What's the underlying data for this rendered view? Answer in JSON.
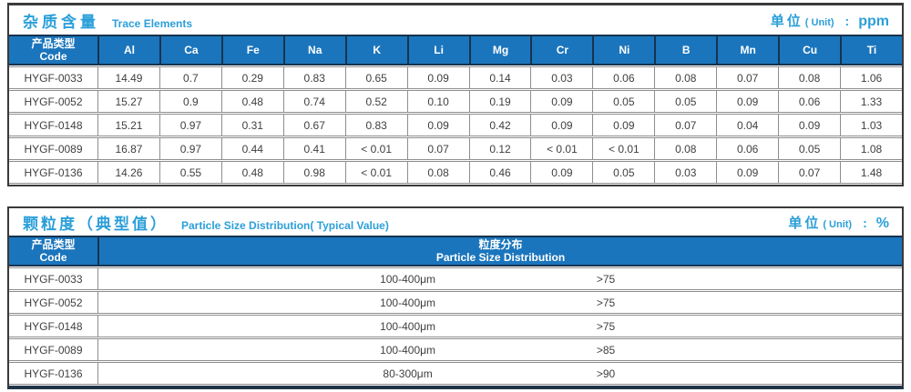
{
  "colors": {
    "header_bg": "#1b75bc",
    "divider_navy": "#16334f",
    "title_blue": "#2b9fd9",
    "cell_border_gray": "#8e8e8e"
  },
  "trace_table": {
    "title_zh": "杂质含量",
    "title_en": "Trace Elements",
    "unit_label": "单位",
    "unit_paren": "( Unit)",
    "unit_colon": ":",
    "unit_value": "ppm",
    "code_header_zh": "产品类型",
    "code_header_en": "Code",
    "columns": [
      "Al",
      "Ca",
      "Fe",
      "Na",
      "K",
      "Li",
      "Mg",
      "Cr",
      "Ni",
      "B",
      "Mn",
      "Cu",
      "Ti"
    ],
    "rows": [
      {
        "code": "HYGF-0033",
        "values": [
          "14.49",
          "0.7",
          "0.29",
          "0.83",
          "0.65",
          "0.09",
          "0.14",
          "0.03",
          "0.06",
          "0.08",
          "0.07",
          "0.08",
          "1.06"
        ]
      },
      {
        "code": "HYGF-0052",
        "values": [
          "15.27",
          "0.9",
          "0.48",
          "0.74",
          "0.52",
          "0.10",
          "0.19",
          "0.09",
          "0.05",
          "0.05",
          "0.09",
          "0.06",
          "1.33"
        ]
      },
      {
        "code": "HYGF-0148",
        "values": [
          "15.21",
          "0.97",
          "0.31",
          "0.67",
          "0.83",
          "0.09",
          "0.42",
          "0.09",
          "0.09",
          "0.07",
          "0.04",
          "0.09",
          "1.03"
        ]
      },
      {
        "code": "HYGF-0089",
        "values": [
          "16.87",
          "0.97",
          "0.44",
          "0.41",
          "< 0.01",
          "0.07",
          "0.12",
          "< 0.01",
          "< 0.01",
          "0.08",
          "0.06",
          "0.05",
          "1.08"
        ]
      },
      {
        "code": "HYGF-0136",
        "values": [
          "14.26",
          "0.55",
          "0.48",
          "0.98",
          "< 0.01",
          "0.08",
          "0.46",
          "0.09",
          "0.05",
          "0.03",
          "0.09",
          "0.07",
          "1.48"
        ]
      }
    ]
  },
  "psd_table": {
    "title_zh": "颗粒度（典型值）",
    "title_en": "Particle Size Distribution( Typical Value)",
    "unit_label": "单位",
    "unit_paren": "( Unit)",
    "unit_colon": ":",
    "unit_value": "%",
    "code_header_zh": "产品类型",
    "code_header_en": "Code",
    "dist_header_zh": "粒度分布",
    "dist_header_en": "Particle Size  Distribution",
    "rows": [
      {
        "code": "HYGF-0033",
        "range": "100-400μm",
        "value": ">75"
      },
      {
        "code": "HYGF-0052",
        "range": "100-400μm",
        "value": ">75"
      },
      {
        "code": "HYGF-0148",
        "range": "100-400μm",
        "value": ">75"
      },
      {
        "code": "HYGF-0089",
        "range": "100-400μm",
        "value": ">85"
      },
      {
        "code": "HYGF-0136",
        "range": "80-300μm",
        "value": ">90"
      }
    ]
  }
}
